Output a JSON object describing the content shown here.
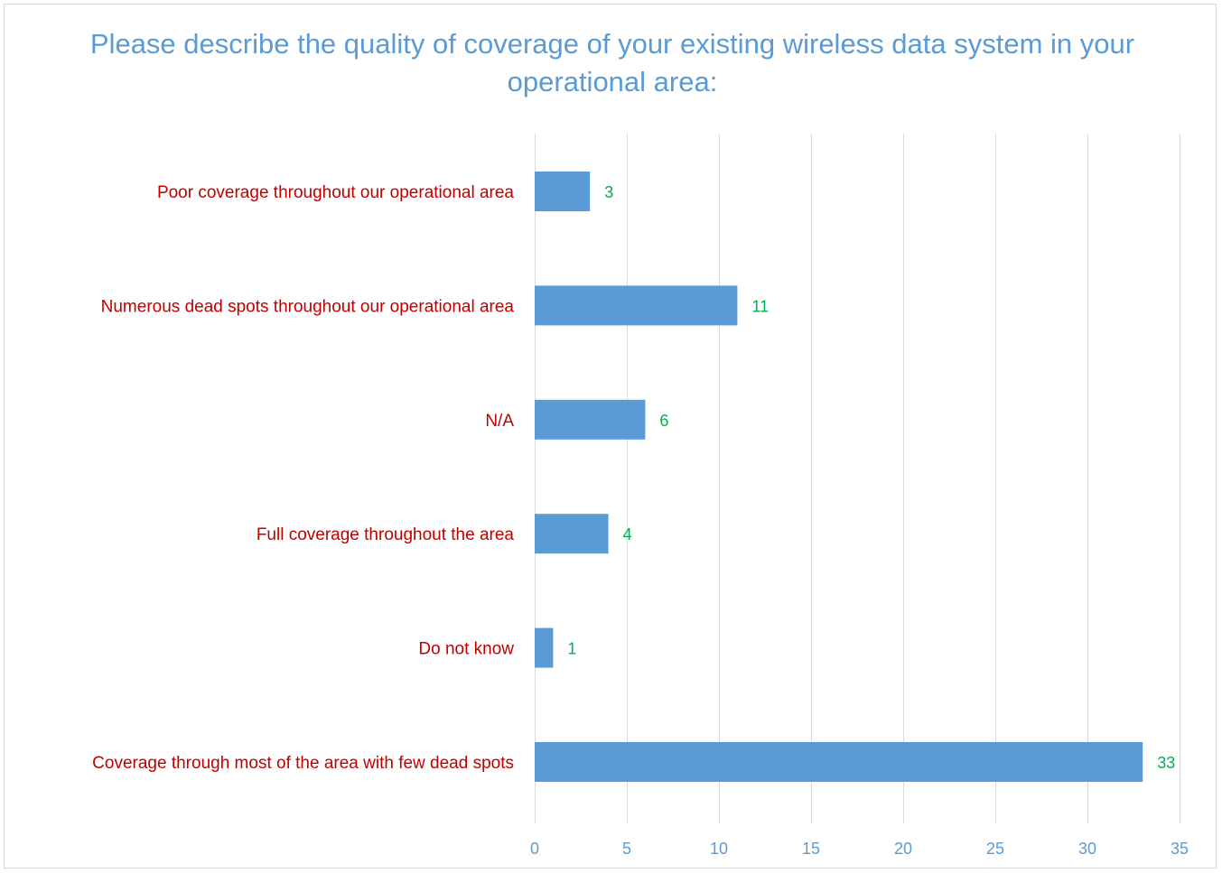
{
  "chart_data": {
    "type": "bar",
    "orientation": "horizontal",
    "title": "Please describe the quality of coverage of your existing wireless data system in your operational area:",
    "categories": [
      "Poor coverage throughout our operational area",
      "Numerous dead spots throughout our operational area",
      "N/A",
      "Full coverage throughout the area",
      "Do not know",
      "Coverage through most of the area with few dead spots"
    ],
    "values": [
      3,
      11,
      6,
      4,
      1,
      33
    ],
    "xlim": [
      0,
      35
    ],
    "xticks": [
      0,
      5,
      10,
      15,
      20,
      25,
      30,
      35
    ],
    "grid": true,
    "legend": "none",
    "colors": {
      "bar": "#5b9bd5",
      "title": "#5b9bd5",
      "category_label": "#c00000",
      "value_label": "#00b050",
      "tick_label": "#5b9bd5",
      "grid": "#d9d9d9"
    }
  }
}
